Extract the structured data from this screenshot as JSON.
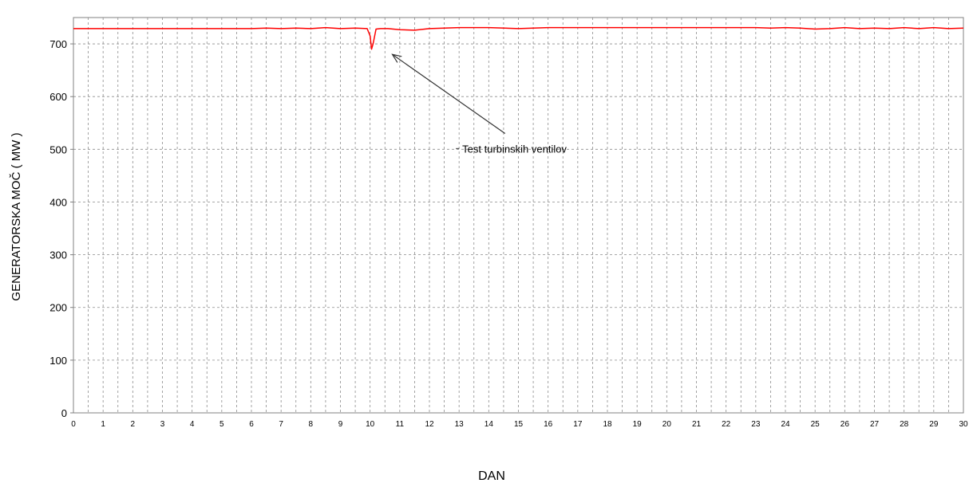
{
  "chart_data": {
    "type": "line",
    "title": "",
    "xlabel": "DAN",
    "ylabel": "GENERATORSKA MOČ ( MW )",
    "xlim": [
      0,
      30
    ],
    "ylim": [
      0,
      750
    ],
    "x_ticks": [
      0,
      1,
      2,
      3,
      4,
      5,
      6,
      7,
      8,
      9,
      10,
      11,
      12,
      13,
      14,
      15,
      16,
      17,
      18,
      19,
      20,
      21,
      22,
      23,
      24,
      25,
      26,
      27,
      28,
      29,
      30
    ],
    "y_ticks": [
      0,
      100,
      200,
      300,
      400,
      500,
      600,
      700
    ],
    "grid": {
      "vertical": "dashed, every half day",
      "horizontal": "dashed, every 100"
    },
    "series": [
      {
        "color": "#ff0000",
        "x": [
          0,
          2,
          4,
          6,
          6.5,
          7,
          7.5,
          8,
          8.5,
          9,
          9.5,
          9.9,
          10.0,
          10.05,
          10.1,
          10.2,
          10.35,
          10.6,
          11.0,
          11.5,
          12.0,
          12.5,
          13,
          14,
          15,
          16,
          17,
          18,
          19,
          20,
          21,
          22,
          23,
          23.5,
          24,
          24.5,
          25,
          25.5,
          26,
          26.5,
          27,
          27.5,
          28,
          28.5,
          29,
          29.5,
          30
        ],
        "y": [
          729,
          729,
          729,
          729,
          730,
          729,
          730,
          729,
          731,
          729,
          730,
          729,
          715,
          690,
          700,
          728,
          729,
          729,
          727,
          726,
          729,
          730,
          731,
          731,
          729,
          731,
          731,
          731,
          731,
          731,
          731,
          731,
          731,
          730,
          731,
          730,
          728,
          729,
          731,
          729,
          730,
          729,
          731,
          729,
          731,
          729,
          730
        ]
      }
    ],
    "annotations": [
      {
        "text": "Test turbinskih ventilov",
        "text_at": [
          13.0,
          500
        ],
        "arrow_from": [
          14.55,
          530
        ],
        "arrow_to": [
          10.75,
          680
        ]
      }
    ]
  }
}
